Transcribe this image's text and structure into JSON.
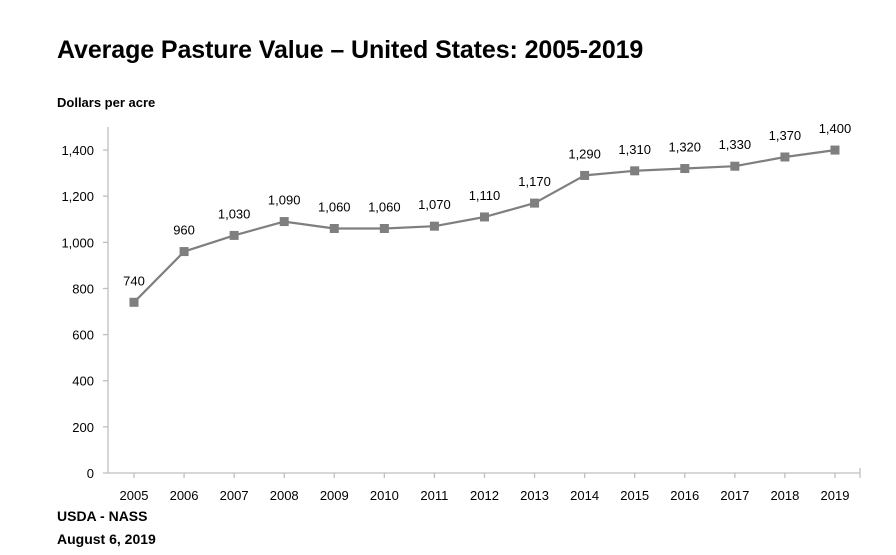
{
  "chart_data": {
    "type": "line",
    "title": "Average Pasture Value – United States: 2005-2019",
    "ylabel": "Dollars per acre",
    "xlabel": "",
    "categories": [
      "2005",
      "2006",
      "2007",
      "2008",
      "2009",
      "2010",
      "2011",
      "2012",
      "2013",
      "2014",
      "2015",
      "2016",
      "2017",
      "2018",
      "2019"
    ],
    "series": [
      {
        "name": "Average Pasture Value",
        "values": [
          740,
          960,
          1030,
          1090,
          1060,
          1060,
          1070,
          1110,
          1170,
          1290,
          1310,
          1320,
          1330,
          1370,
          1400
        ],
        "data_labels": [
          "740",
          "960",
          "1,030",
          "1,090",
          "1,060",
          "1,060",
          "1,070",
          "1,110",
          "1,170",
          "1,290",
          "1,310",
          "1,320",
          "1,330",
          "1,370",
          "1,400"
        ],
        "color": "#7f7f7f",
        "marker": "square"
      }
    ],
    "yticks": [
      0,
      200,
      400,
      600,
      800,
      1000,
      1200,
      1400
    ],
    "ytick_labels": [
      "0",
      "200",
      "400",
      "600",
      "800",
      "1,000",
      "1,200",
      "1,400"
    ],
    "ylim": [
      0,
      1500
    ],
    "grid": false,
    "legend": "none",
    "axis_color": "#bfbfbf"
  },
  "footer": {
    "source": "USDA - NASS",
    "date": "August 6, 2019"
  }
}
